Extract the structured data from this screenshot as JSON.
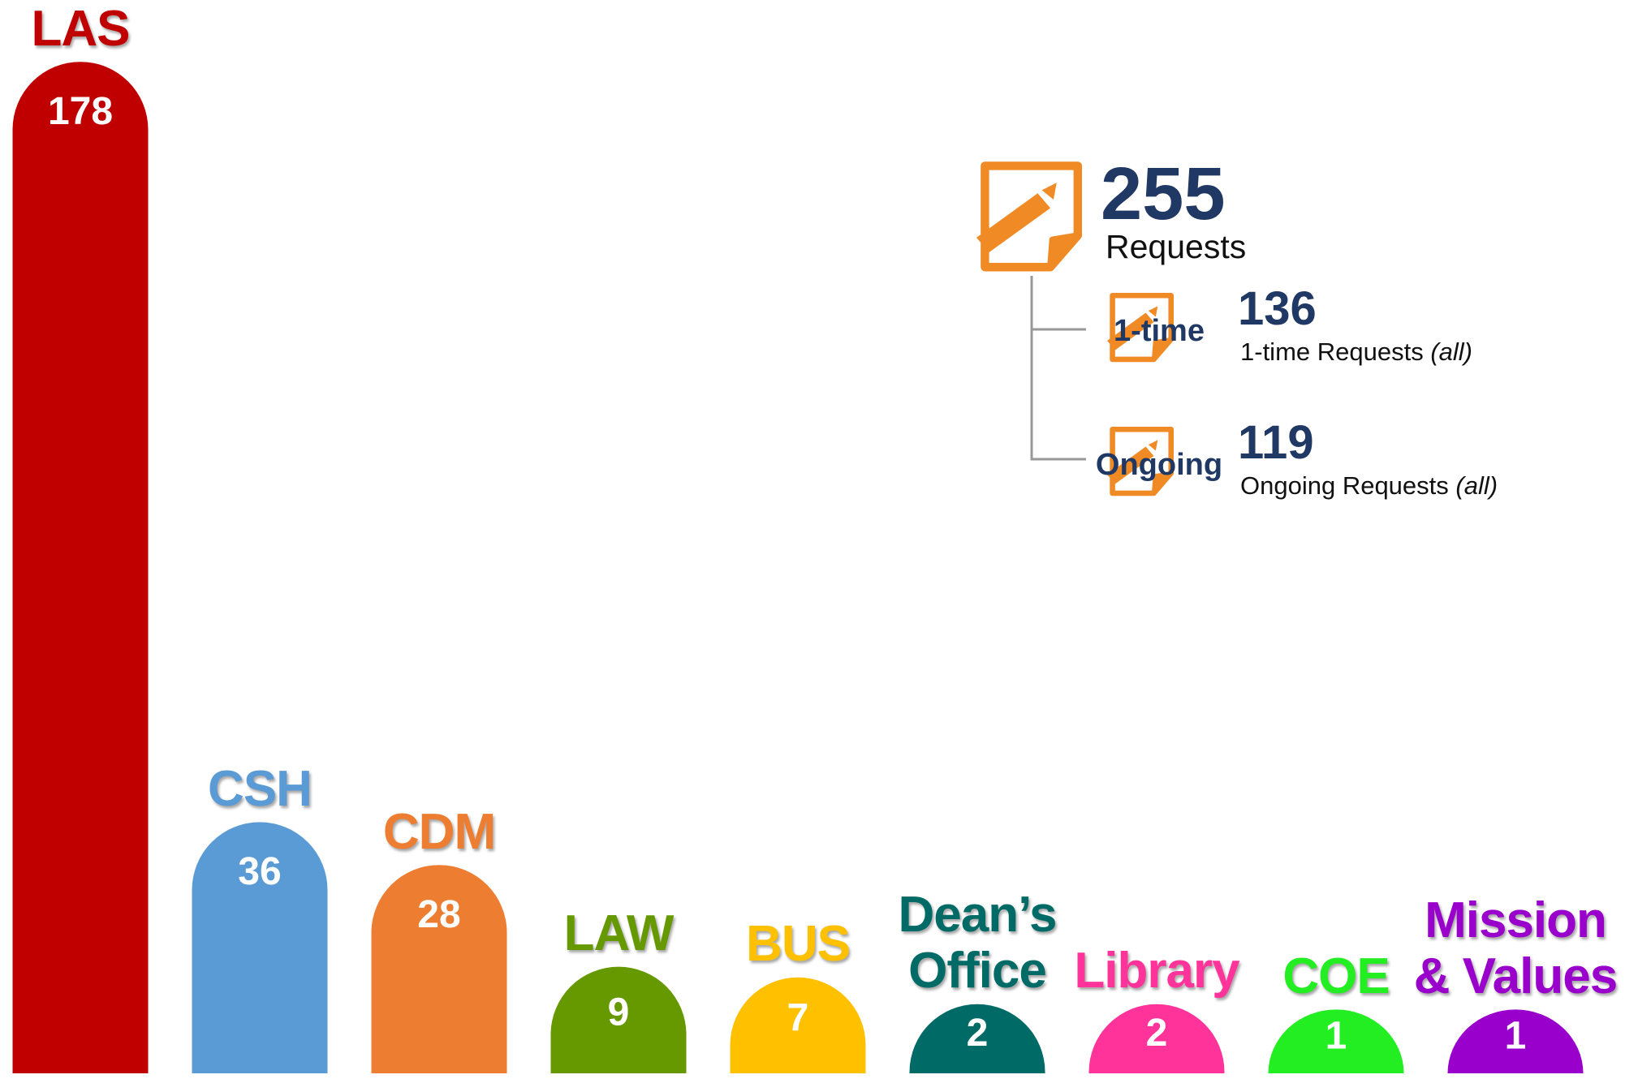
{
  "chart_data": {
    "type": "bar",
    "categories": [
      "LAS",
      "CSH",
      "CDM",
      "LAW",
      "BUS",
      "Dean’s\nOffice",
      "Library",
      "COE",
      "Mission\n& Values"
    ],
    "values": [
      178,
      36,
      28,
      9,
      7,
      2,
      2,
      1,
      1
    ],
    "colors": [
      "#c00000",
      "#5b9bd5",
      "#ed7d31",
      "#669900",
      "#ffc000",
      "#006b66",
      "#ff3399",
      "#22ee22",
      "#9900cc"
    ]
  },
  "summary": {
    "total": 255,
    "total_label": "Requests",
    "items": [
      {
        "tag": "1-time",
        "value": 136,
        "label": "1-time Requests",
        "note": "(all)"
      },
      {
        "tag": "Ongoing",
        "value": 119,
        "label": "Ongoing Requests",
        "note": "(all)"
      }
    ]
  }
}
